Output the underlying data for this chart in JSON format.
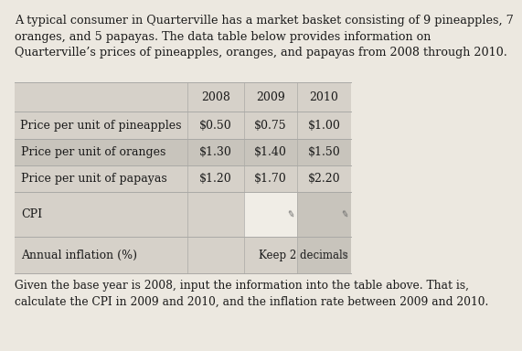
{
  "header_text": "A typical consumer in Quarterville has a market basket consisting of 9 pineapples, 7\noranges, and 5 papayas. The data table below provides information on\nQuarterville’s prices of pineapples, oranges, and papayas from 2008 through 2010.",
  "footer_text": "Given the base year is 2008, input the information into the table above. That is,\ncalculate the CPI in 2009 and 2010, and the inflation rate between 2009 and 2010.",
  "col_headers": [
    "",
    "2008",
    "2009",
    "2010"
  ],
  "rows": [
    [
      "Price per unit of pineapples",
      "$0.50",
      "$0.75",
      "$1.00"
    ],
    [
      "Price per unit of oranges",
      "$1.30",
      "$1.40",
      "$1.50"
    ],
    [
      "Price per unit of papayas",
      "$1.20",
      "$1.70",
      "$2.20"
    ],
    [
      "CPI",
      "",
      "",
      ""
    ],
    [
      "Annual inflation (%)",
      "",
      "",
      ""
    ]
  ],
  "note_text": "Keep 2 decimals",
  "fig_bg": "#ece8e0",
  "table_bg": "#d6d1c9",
  "row_alt1": "#d6d1c9",
  "row_alt2": "#c8c4bc",
  "input_white": "#f0ede6",
  "input_grey": "#c4c0b8",
  "line_color": "#aaa9a6",
  "text_color": "#1a1a1a",
  "header_fontsize": 9.2,
  "table_fontsize": 9.0,
  "footer_fontsize": 8.8
}
